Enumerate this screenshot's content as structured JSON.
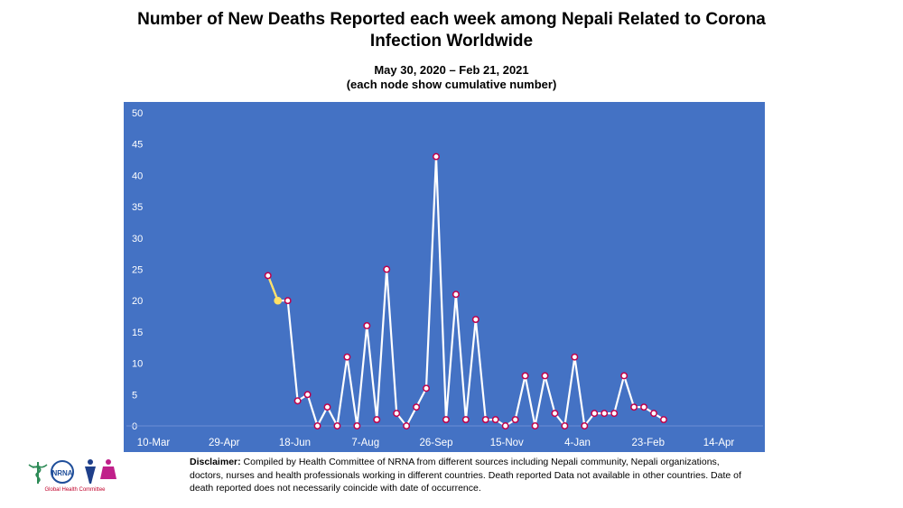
{
  "title_line1": "Number of New Deaths Reported each week among Nepali Related to Corona",
  "title_line2": "Infection Worldwide",
  "subtitle_line1": "May 30, 2020 – Feb 21, 2021",
  "subtitle_line2": "(each node show cumulative number)",
  "disclaimer_label": "Disclaimer:",
  "disclaimer_text": "Compiled by Health Committee of NRNA from different sources including Nepali community, Nepali organizations, doctors, nurses and health professionals working in different countries. Death reported Data not available in other countries. Date of death reported does not necessarily coincide with date of occurrence.",
  "logo_caption": "Global Health Committee",
  "logo_badge": "NRNA",
  "colors": {
    "plot_bg": "#4472c4",
    "line": "#ffffff",
    "marker_fill": "#ffffff",
    "marker_edge": "#c0004a",
    "highlight": "#ffe066"
  },
  "chart_data": {
    "type": "line",
    "title": "Number of New Deaths Reported each week among Nepali Related to Corona Infection Worldwide",
    "subtitle": "May 30, 2020 – Feb 21, 2021 (each node show cumulative number)",
    "x_ticks": [
      "10-Mar",
      "29-Apr",
      "18-Jun",
      "7-Aug",
      "26-Sep",
      "15-Nov",
      "4-Jan",
      "23-Feb",
      "14-Apr"
    ],
    "x_range": [
      "2020-03-10",
      "2021-04-14"
    ],
    "ylim": [
      0,
      50
    ],
    "y_ticks": [
      0,
      5,
      10,
      15,
      20,
      25,
      30,
      35,
      40,
      45,
      50
    ],
    "grid": false,
    "series": [
      {
        "values": [
          24,
          20,
          20,
          4,
          5,
          0,
          3,
          0,
          11,
          0,
          16,
          1,
          25,
          2,
          0,
          3,
          6,
          43,
          1,
          21,
          1,
          17,
          1,
          1,
          0,
          1,
          8,
          0,
          8,
          2,
          0,
          11,
          0,
          2,
          2,
          2,
          8,
          3,
          3,
          2,
          1
        ],
        "highlight_index": 1
      }
    ]
  }
}
